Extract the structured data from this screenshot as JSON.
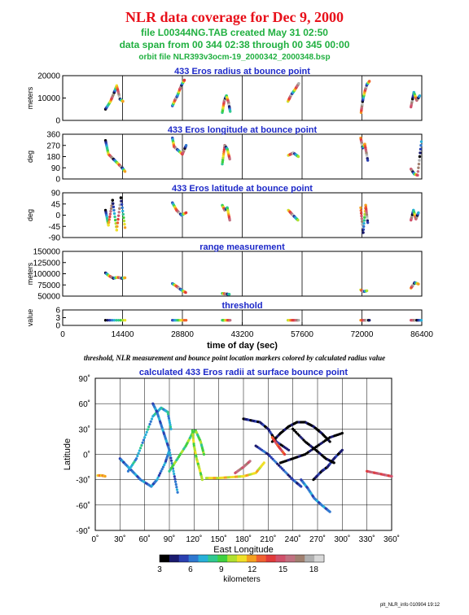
{
  "header": {
    "title": "NLR data coverage for Dec 9, 2000",
    "file_line": "file L00344NG.TAB created May 31 02:50",
    "span_line": "data span from 00 344 02:38 through 00 345 00:00",
    "orbit_line": "orbit file NLR393v3ocm-19_2000342_2000348.bsp"
  },
  "caption": "threshold, NLR measurement and bounce point location markers colored by calculated radius value",
  "footer": "plt_NLR_info 010904 19:12",
  "colors": {
    "title_red": "#e8101a",
    "subtitle_green": "#20b040",
    "panel_title_blue": "#1c28c8",
    "vertical_guides": "#000000"
  },
  "chart_data": [
    {
      "type": "scatter",
      "title": "433 Eros radius at bounce point",
      "ylabel": "meters",
      "ylim": [
        0,
        20000
      ],
      "yticks": [
        "0",
        "10000",
        "20000"
      ],
      "xlim": [
        0,
        86400
      ],
      "segments": [
        {
          "x": [
            10300,
            11500,
            12400,
            13000,
            13800,
            14500
          ],
          "y": [
            5000,
            8500,
            12500,
            15500,
            9500,
            8500
          ]
        },
        {
          "x": [
            26400,
            27000,
            27600,
            28200,
            28800,
            29300
          ],
          "y": [
            6500,
            9000,
            11000,
            14000,
            16500,
            18000
          ]
        },
        {
          "x": [
            38400,
            38900,
            39400,
            39900,
            40300
          ],
          "y": [
            3500,
            9000,
            11000,
            8000,
            4000
          ]
        },
        {
          "x": [
            54200,
            55000,
            55800,
            56800
          ],
          "y": [
            8500,
            11500,
            13500,
            16500
          ]
        },
        {
          "x": [
            71800,
            72200,
            72700,
            73200,
            73800
          ],
          "y": [
            3500,
            9000,
            13000,
            16000,
            17500
          ]
        },
        {
          "x": [
            83800,
            84500,
            85200,
            85900
          ],
          "y": [
            6000,
            12500,
            9000,
            11000
          ]
        }
      ]
    },
    {
      "type": "scatter",
      "title": "433 Eros longitude at bounce point",
      "ylabel": "deg",
      "ylim": [
        0,
        360
      ],
      "yticks": [
        "0",
        "90",
        "180",
        "270",
        "360"
      ],
      "xlim": [
        0,
        86400
      ],
      "segments": [
        {
          "x": [
            10300,
            11000,
            12200,
            13400,
            14300,
            15000
          ],
          "y": [
            310,
            200,
            160,
            120,
            90,
            60
          ]
        },
        {
          "x": [
            26400,
            26800,
            27800,
            28800,
            29700
          ],
          "y": [
            330,
            260,
            230,
            200,
            270
          ]
        },
        {
          "x": [
            38400,
            39000,
            39600,
            40200
          ],
          "y": [
            120,
            270,
            240,
            160
          ]
        },
        {
          "x": [
            54300,
            55500,
            56700
          ],
          "y": [
            190,
            210,
            180
          ]
        },
        {
          "x": [
            71700,
            72200,
            72700,
            73400
          ],
          "y": [
            330,
            250,
            280,
            150
          ]
        },
        {
          "x": [
            83800,
            84600,
            85400,
            86300
          ],
          "y": [
            80,
            40,
            30,
            300
          ]
        }
      ]
    },
    {
      "type": "scatter",
      "title": "433 Eros latitude at bounce point",
      "ylabel": "deg",
      "ylim": [
        -90,
        90
      ],
      "yticks": [
        "-90",
        "-45",
        "0",
        "45",
        "90"
      ],
      "xlim": [
        0,
        86400
      ],
      "segments": [
        {
          "x": [
            10300,
            11000,
            12000,
            13000,
            14000,
            15000
          ],
          "y": [
            20,
            -40,
            60,
            -60,
            70,
            -50
          ]
        },
        {
          "x": [
            26400,
            27400,
            28600,
            29700
          ],
          "y": [
            50,
            20,
            0,
            10
          ]
        },
        {
          "x": [
            38400,
            39000,
            39600,
            40200
          ],
          "y": [
            40,
            20,
            30,
            -20
          ]
        },
        {
          "x": [
            54300,
            55400,
            56600
          ],
          "y": [
            20,
            0,
            -20
          ]
        },
        {
          "x": [
            71700,
            72300,
            72900,
            73400
          ],
          "y": [
            30,
            -70,
            40,
            -30
          ]
        },
        {
          "x": [
            83800,
            84400,
            85000,
            85600
          ],
          "y": [
            -20,
            20,
            -15,
            10
          ]
        }
      ]
    },
    {
      "type": "scatter",
      "title": "range measurement",
      "ylabel": "meters",
      "ylim": [
        50000,
        150000
      ],
      "yticks": [
        "50000",
        "75000",
        "100000",
        "125000",
        "150000"
      ],
      "xlim": [
        0,
        86400
      ],
      "segments": [
        {
          "x": [
            10300,
            11200,
            12200,
            13200,
            14200,
            15000
          ],
          "y": [
            102000,
            95000,
            90000,
            92000,
            90000,
            91000
          ]
        },
        {
          "x": [
            26400,
            27400,
            28500,
            29600
          ],
          "y": [
            78000,
            72000,
            64000,
            58000
          ]
        },
        {
          "x": [
            38400,
            39200,
            40100
          ],
          "y": [
            56000,
            55000,
            54000
          ]
        },
        {
          "x": [
            71700,
            72400,
            73200
          ],
          "y": [
            64000,
            60000,
            62000
          ]
        },
        {
          "x": [
            83800,
            84700,
            85600
          ],
          "y": [
            68000,
            80000,
            77000
          ]
        }
      ]
    },
    {
      "type": "scatter",
      "title": "threshold",
      "ylabel": "value",
      "ylim": [
        0,
        6
      ],
      "yticks": [
        "0",
        "3",
        "6"
      ],
      "xlabel": "time of day (sec)",
      "xlim": [
        0,
        86400
      ],
      "xticks": [
        "0",
        "14400",
        "28800",
        "43200",
        "57600",
        "72000",
        "86400"
      ],
      "segments": [
        {
          "x": [
            10300,
            15000
          ],
          "y": [
            2,
            2
          ]
        },
        {
          "x": [
            26400,
            29700
          ],
          "y": [
            2,
            2
          ]
        },
        {
          "x": [
            38400,
            40300
          ],
          "y": [
            2,
            2
          ]
        },
        {
          "x": [
            54200,
            56800
          ],
          "y": [
            2,
            2
          ]
        },
        {
          "x": [
            71700,
            73800
          ],
          "y": [
            2,
            2
          ]
        },
        {
          "x": [
            83800,
            86300
          ],
          "y": [
            2,
            2
          ]
        }
      ]
    },
    {
      "type": "scatter",
      "title": "calculated 433 Eros radii at surface bounce point",
      "xlabel": "East Longitude",
      "ylabel": "Latitude",
      "xlim": [
        0,
        360
      ],
      "ylim": [
        -90,
        90
      ],
      "xticks": [
        "0˚",
        "30˚",
        "60˚",
        "90˚",
        "120˚",
        "150˚",
        "180˚",
        "210˚",
        "240˚",
        "270˚",
        "300˚",
        "330˚",
        "360˚"
      ],
      "yticks": [
        "-90˚",
        "-60˚",
        "-30˚",
        "0˚",
        "30˚",
        "60˚",
        "90˚"
      ],
      "colorbar": {
        "label": "kilometers",
        "ticks": [
          "3",
          "6",
          "9",
          "12",
          "15",
          "18"
        ],
        "range": [
          3,
          19
        ]
      },
      "tracks": [
        {
          "lon": [
            30,
            35,
            45,
            55,
            68,
            75,
            85,
            90
          ],
          "lat": [
            -5,
            -10,
            -20,
            -30,
            -38,
            -30,
            -10,
            5
          ],
          "km": 6
        },
        {
          "lon": [
            40,
            50,
            60,
            70,
            80,
            88,
            92
          ],
          "lat": [
            -20,
            -5,
            20,
            45,
            55,
            50,
            30
          ],
          "km": 7
        },
        {
          "lon": [
            70,
            75,
            80,
            85,
            90,
            95,
            100
          ],
          "lat": [
            60,
            50,
            35,
            20,
            5,
            -20,
            -45
          ],
          "km": 6
        },
        {
          "lon": [
            90,
            100,
            110,
            118,
            122,
            128,
            132
          ],
          "lat": [
            -20,
            -5,
            10,
            25,
            28,
            15,
            0
          ],
          "km": 9
        },
        {
          "lon": [
            118,
            120,
            123,
            126,
            130
          ],
          "lat": [
            28,
            10,
            -5,
            -15,
            -30
          ],
          "km": 10
        },
        {
          "lon": [
            135,
            150,
            165,
            180,
            195,
            205
          ],
          "lat": [
            -28,
            -28,
            -27,
            -26,
            -22,
            -10
          ],
          "km": 11
        },
        {
          "lon": [
            180,
            190,
            200,
            210,
            220,
            235
          ],
          "lat": [
            42,
            40,
            38,
            30,
            15,
            5
          ],
          "km": 4
        },
        {
          "lon": [
            195,
            210,
            225,
            240,
            250
          ],
          "lat": [
            10,
            0,
            -15,
            -30,
            -38
          ],
          "km": 5
        },
        {
          "lon": [
            215,
            225,
            235,
            245,
            255,
            265,
            275,
            285
          ],
          "lat": [
            15,
            25,
            33,
            38,
            38,
            33,
            25,
            15
          ],
          "km": 3
        },
        {
          "lon": [
            225,
            240,
            255,
            270,
            285,
            300
          ],
          "lat": [
            -10,
            -5,
            0,
            10,
            20,
            25
          ],
          "km": 3
        },
        {
          "lon": [
            240,
            255,
            268,
            280,
            290
          ],
          "lat": [
            30,
            15,
            5,
            -5,
            -10
          ],
          "km": 3
        },
        {
          "lon": [
            250,
            258,
            266,
            275,
            285
          ],
          "lat": [
            -30,
            -40,
            -52,
            -60,
            -68
          ],
          "km": 6
        },
        {
          "lon": [
            265,
            275,
            282,
            290,
            300
          ],
          "lat": [
            -30,
            -20,
            -15,
            -5,
            5
          ],
          "km": 4
        },
        {
          "lon": [
            330,
            340,
            350,
            360
          ],
          "lat": [
            -20,
            -22,
            -24,
            -26
          ],
          "km": 15
        },
        {
          "lon": [
            170,
            180,
            188
          ],
          "lat": [
            -22,
            -15,
            -8
          ],
          "km": 16
        },
        {
          "lon": [
            215,
            222,
            230
          ],
          "lat": [
            20,
            10,
            0
          ],
          "km": 14
        },
        {
          "lon": [
            3,
            8,
            12
          ],
          "lat": [
            -25,
            -25,
            -26
          ],
          "km": 12
        }
      ]
    }
  ]
}
